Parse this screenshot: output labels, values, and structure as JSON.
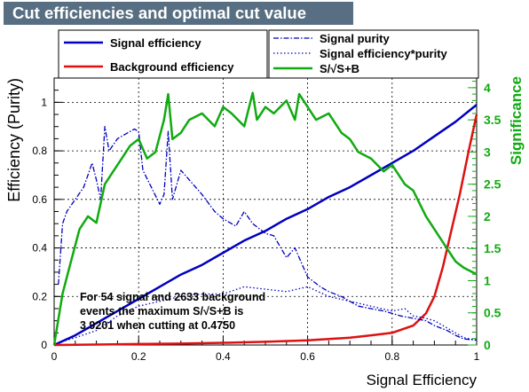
{
  "title": "Cut efficiencies and optimal cut value",
  "chart_data": {
    "type": "line",
    "xlabel": "Signal Efficiency",
    "ylabel": "Efficiency (Purity)",
    "y2label": "Significance",
    "xlim": [
      0,
      1
    ],
    "ylim": [
      0,
      1.1
    ],
    "y2lim": [
      0,
      4.15
    ],
    "x_ticks": [
      "0",
      "0.2",
      "0.4",
      "0.6",
      "0.8",
      "1"
    ],
    "y_ticks": [
      "0",
      "0.2",
      "0.4",
      "0.6",
      "0.8",
      "1"
    ],
    "y2_ticks": [
      "0",
      "0.5",
      "1",
      "1.5",
      "2",
      "2.5",
      "3",
      "3.5",
      "4"
    ],
    "grid": true,
    "colors": {
      "signal": "#0000bf",
      "background": "#dd1111",
      "significance": "#11aa11",
      "purity": "#0000bf",
      "title_bg": "#586f83"
    },
    "legend": [
      {
        "label": "Signal efficiency",
        "style": "solid",
        "color": "#0000bf"
      },
      {
        "label": "Background efficiency",
        "style": "solid",
        "color": "#dd1111"
      },
      {
        "label": "Signal purity",
        "style": "dashdot",
        "color": "#0000bf"
      },
      {
        "label": "Signal efficiency*purity",
        "style": "dotted",
        "color": "#0000bf"
      },
      {
        "label": "S/√S+B",
        "style": "solid",
        "color": "#11aa11"
      }
    ],
    "annotation": [
      "For 54 signal and 2633 background",
      "events the maximum S/√S+B is",
      "3.9201 when cutting at 0.4750"
    ],
    "series": [
      {
        "name": "Signal efficiency",
        "axis": "left",
        "style": "solid",
        "x": [
          0,
          0.05,
          0.1,
          0.15,
          0.2,
          0.25,
          0.3,
          0.35,
          0.4,
          0.45,
          0.5,
          0.55,
          0.6,
          0.65,
          0.7,
          0.75,
          0.8,
          0.85,
          0.9,
          0.95,
          1.0
        ],
        "y": [
          0,
          0.04,
          0.09,
          0.14,
          0.19,
          0.24,
          0.29,
          0.33,
          0.38,
          0.43,
          0.47,
          0.52,
          0.56,
          0.61,
          0.65,
          0.7,
          0.75,
          0.8,
          0.86,
          0.92,
          0.99
        ]
      },
      {
        "name": "Background efficiency",
        "axis": "left",
        "style": "solid",
        "x": [
          0,
          0.1,
          0.2,
          0.3,
          0.4,
          0.5,
          0.6,
          0.65,
          0.7,
          0.75,
          0.8,
          0.85,
          0.88,
          0.9,
          0.92,
          0.94,
          0.96,
          0.98,
          1.0
        ],
        "y": [
          0,
          0.002,
          0.004,
          0.006,
          0.009,
          0.013,
          0.019,
          0.025,
          0.03,
          0.04,
          0.05,
          0.08,
          0.13,
          0.2,
          0.32,
          0.47,
          0.62,
          0.79,
          0.95
        ]
      },
      {
        "name": "Signal purity",
        "axis": "left",
        "style": "dashdot",
        "x": [
          0.01,
          0.02,
          0.03,
          0.05,
          0.07,
          0.09,
          0.1,
          0.11,
          0.12,
          0.13,
          0.15,
          0.17,
          0.19,
          0.2,
          0.21,
          0.23,
          0.25,
          0.26,
          0.27,
          0.28,
          0.3,
          0.32,
          0.35,
          0.38,
          0.4,
          0.43,
          0.45,
          0.47,
          0.5,
          0.52,
          0.55,
          0.57,
          0.6,
          0.63,
          0.65,
          0.68,
          0.7,
          0.72,
          0.75,
          0.78,
          0.8,
          0.82,
          0.85,
          0.88,
          0.9,
          0.93,
          0.95,
          0.97,
          1.0
        ],
        "y": [
          0.25,
          0.5,
          0.55,
          0.6,
          0.65,
          0.75,
          0.68,
          0.6,
          0.9,
          0.8,
          0.85,
          0.87,
          0.89,
          0.88,
          0.72,
          0.65,
          0.58,
          0.62,
          0.88,
          0.6,
          0.72,
          0.68,
          0.62,
          0.55,
          0.52,
          0.49,
          0.55,
          0.5,
          0.46,
          0.45,
          0.36,
          0.4,
          0.28,
          0.24,
          0.22,
          0.2,
          0.18,
          0.16,
          0.15,
          0.14,
          0.13,
          0.12,
          0.11,
          0.1,
          0.08,
          0.06,
          0.04,
          0.025,
          0.02
        ]
      },
      {
        "name": "Signal efficiency*purity",
        "axis": "left",
        "style": "dotted",
        "x": [
          0.01,
          0.05,
          0.1,
          0.15,
          0.2,
          0.25,
          0.3,
          0.35,
          0.4,
          0.45,
          0.5,
          0.55,
          0.6,
          0.65,
          0.7,
          0.75,
          0.8,
          0.83,
          0.85,
          0.88,
          0.9,
          0.93,
          0.95,
          0.97,
          1.0
        ],
        "y": [
          0.01,
          0.03,
          0.06,
          0.12,
          0.16,
          0.18,
          0.2,
          0.21,
          0.21,
          0.24,
          0.23,
          0.22,
          0.24,
          0.2,
          0.18,
          0.16,
          0.14,
          0.15,
          0.12,
          0.11,
          0.1,
          0.07,
          0.05,
          0.03,
          0.02
        ]
      },
      {
        "name": "S/√S+B",
        "axis": "right",
        "style": "solid",
        "x": [
          0.0,
          0.02,
          0.04,
          0.06,
          0.08,
          0.1,
          0.12,
          0.14,
          0.16,
          0.18,
          0.2,
          0.22,
          0.24,
          0.26,
          0.27,
          0.28,
          0.3,
          0.32,
          0.35,
          0.38,
          0.4,
          0.42,
          0.45,
          0.47,
          0.48,
          0.5,
          0.52,
          0.55,
          0.57,
          0.58,
          0.6,
          0.62,
          0.65,
          0.68,
          0.7,
          0.72,
          0.75,
          0.78,
          0.8,
          0.83,
          0.85,
          0.88,
          0.9,
          0.92,
          0.95,
          0.97,
          1.0
        ],
        "y": [
          0.0,
          0.8,
          1.3,
          1.8,
          2.0,
          1.9,
          2.5,
          2.7,
          2.9,
          3.1,
          3.2,
          2.9,
          3.0,
          3.5,
          3.9,
          3.2,
          3.3,
          3.5,
          3.6,
          3.4,
          3.7,
          3.6,
          3.4,
          3.92,
          3.5,
          3.7,
          3.6,
          3.8,
          3.5,
          3.9,
          3.7,
          3.5,
          3.6,
          3.3,
          3.2,
          3.0,
          2.9,
          2.7,
          2.8,
          2.5,
          2.4,
          2.0,
          1.8,
          1.6,
          1.3,
          1.2,
          1.1
        ]
      }
    ]
  }
}
